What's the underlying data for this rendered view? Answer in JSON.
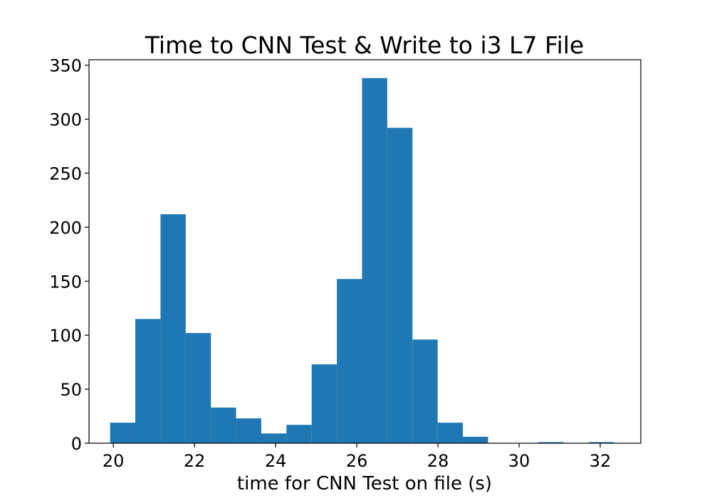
{
  "chart_data": {
    "type": "bar",
    "subtype": "histogram",
    "title": "Time to CNN Test & Write to i3 L7 File",
    "xlabel": "time for CNN Test on file (s)",
    "ylabel": "",
    "xlim": [
      19.4,
      33.0
    ],
    "ylim": [
      0,
      355
    ],
    "x_ticks": [
      20,
      22,
      24,
      26,
      28,
      30,
      32
    ],
    "x_tick_labels": [
      "20",
      "22",
      "24",
      "26",
      "28",
      "30",
      "32"
    ],
    "y_ticks": [
      0,
      50,
      100,
      150,
      200,
      250,
      300,
      350
    ],
    "y_tick_labels": [
      "0",
      "50",
      "100",
      "150",
      "200",
      "250",
      "300",
      "350"
    ],
    "bin_start": 19.92,
    "bin_width": 0.621,
    "values": [
      19,
      115,
      212,
      102,
      33,
      23,
      9,
      17,
      73,
      152,
      338,
      292,
      96,
      19,
      6,
      0,
      0,
      1,
      0,
      1
    ],
    "bar_color": "#1f77b4",
    "grid": false,
    "legend": "none"
  }
}
